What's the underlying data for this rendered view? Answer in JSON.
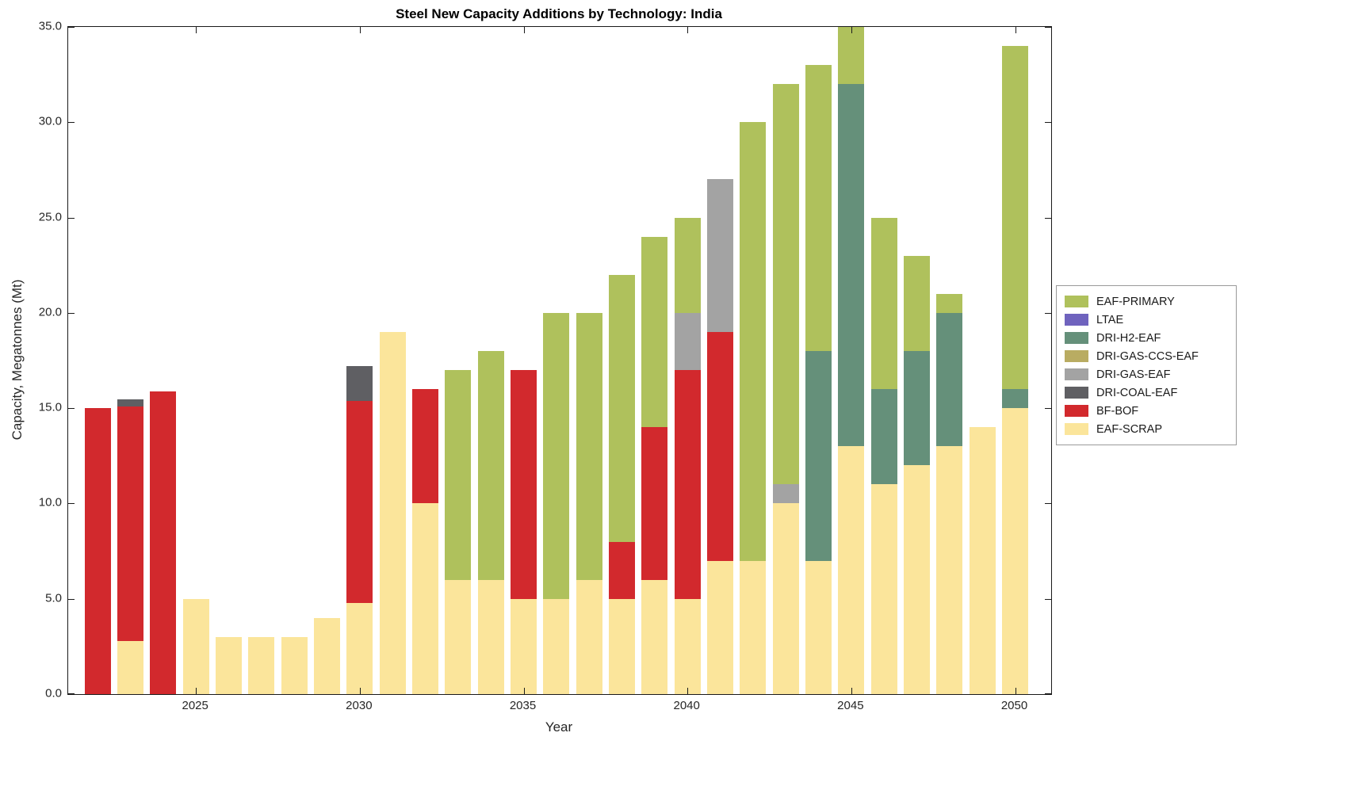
{
  "chart_data": {
    "type": "bar",
    "stacked": true,
    "title": "Steel New Capacity Additions by Technology: India",
    "xlabel": "Year",
    "ylabel": "Capacity, Megatonnes (Mt)",
    "grid": false,
    "legend_position": "right-outside",
    "xlim": [
      2021.1,
      2051.1
    ],
    "ylim": [
      0,
      35
    ],
    "bar_width": 0.8,
    "xticks": [
      2025,
      2030,
      2035,
      2040,
      2045,
      2050
    ],
    "yticks": [
      0,
      5,
      10,
      15,
      20,
      25,
      30,
      35
    ],
    "ytick_labels": [
      "0.0",
      "5.0",
      "10.0",
      "15.0",
      "20.0",
      "25.0",
      "30.0",
      "35.0"
    ],
    "x": [
      2022,
      2023,
      2024,
      2025,
      2026,
      2027,
      2028,
      2029,
      2030,
      2031,
      2032,
      2033,
      2034,
      2035,
      2036,
      2037,
      2038,
      2039,
      2040,
      2041,
      2042,
      2043,
      2044,
      2045,
      2046,
      2047,
      2048,
      2049,
      2050
    ],
    "series": [
      {
        "name": "EAF-SCRAP",
        "color": "#FBE59B",
        "values": [
          0,
          2.8,
          0,
          5,
          3,
          3,
          3,
          4,
          4.8,
          19,
          10,
          6,
          6,
          5,
          5,
          6,
          5,
          6,
          5,
          7,
          7,
          10,
          7,
          13,
          11,
          12,
          13,
          14,
          15
        ]
      },
      {
        "name": "BF-BOF",
        "color": "#D2292D",
        "values": [
          15,
          12.3,
          15.9,
          0,
          0,
          0,
          0,
          0,
          10.6,
          0,
          6,
          0,
          0,
          12,
          0,
          0,
          3,
          8,
          12,
          12,
          0,
          0,
          0,
          0,
          0,
          0,
          0,
          0,
          0
        ]
      },
      {
        "name": "DRI-COAL-EAF",
        "color": "#5F5F63",
        "values": [
          0,
          0.35,
          0,
          0,
          0,
          0,
          0,
          0,
          1.8,
          0,
          0,
          0,
          0,
          0,
          0,
          0,
          0,
          0,
          0,
          0,
          0,
          0,
          0,
          0,
          0,
          0,
          0,
          0,
          0
        ]
      },
      {
        "name": "DRI-GAS-EAF",
        "color": "#A3A3A3",
        "values": [
          0,
          0,
          0,
          0,
          0,
          0,
          0,
          0,
          0,
          0,
          0,
          0,
          0,
          0,
          0,
          0,
          0,
          0,
          3,
          8,
          0,
          1,
          0,
          0,
          0,
          0,
          0,
          0,
          0
        ]
      },
      {
        "name": "DRI-GAS-CCS-EAF",
        "color": "#B9AC62",
        "values": [
          0,
          0,
          0,
          0,
          0,
          0,
          0,
          0,
          0,
          0,
          0,
          0,
          0,
          0,
          0,
          0,
          0,
          0,
          0,
          0,
          0,
          0,
          0,
          0,
          0,
          0,
          0,
          0,
          0
        ]
      },
      {
        "name": "DRI-H2-EAF",
        "color": "#65907A",
        "values": [
          0,
          0,
          0,
          0,
          0,
          0,
          0,
          0,
          0,
          0,
          0,
          0,
          0,
          0,
          0,
          0,
          0,
          0,
          0,
          0,
          0,
          0,
          11,
          19,
          5,
          6,
          7,
          0,
          1
        ]
      },
      {
        "name": "LTAE",
        "color": "#6F63BE",
        "values": [
          0,
          0,
          0,
          0,
          0,
          0,
          0,
          0,
          0,
          0,
          0,
          0,
          0,
          0,
          0,
          0,
          0,
          0,
          0,
          0,
          0,
          0,
          0,
          0,
          0,
          0,
          0,
          0,
          0
        ]
      },
      {
        "name": "EAF-PRIMARY",
        "color": "#AFC15C",
        "values": [
          0,
          0,
          0,
          0,
          0,
          0,
          0,
          0,
          0,
          0,
          0,
          11,
          12,
          0,
          15,
          14,
          14,
          10,
          5,
          0,
          23,
          21,
          15,
          3,
          9,
          5,
          1,
          0,
          18
        ]
      }
    ]
  }
}
